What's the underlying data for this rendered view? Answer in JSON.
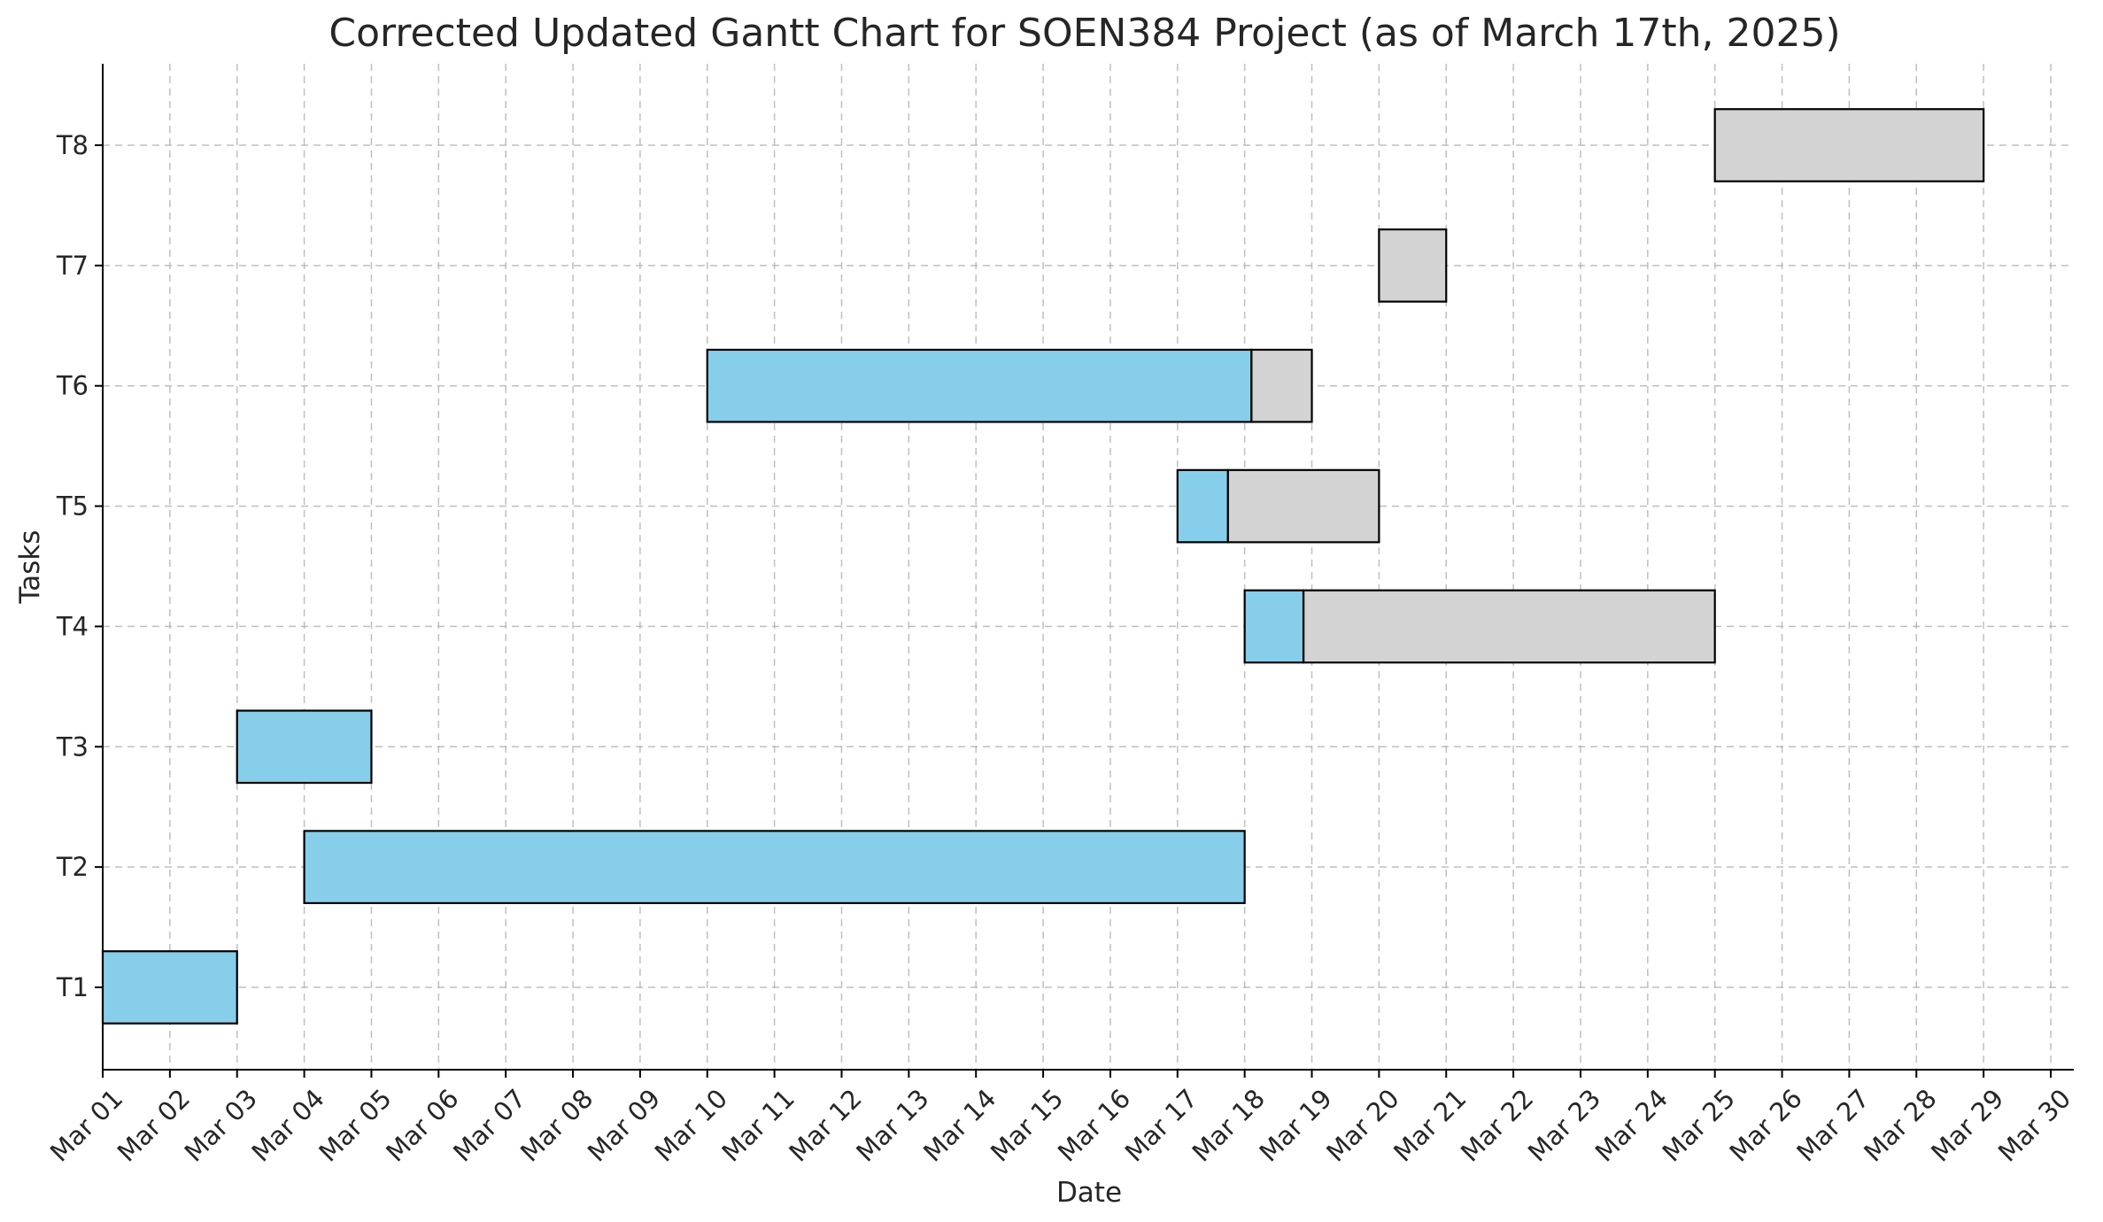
{
  "chart_data": {
    "type": "bar",
    "orientation": "horizontal",
    "subtype": "gantt",
    "title": "Corrected Updated Gantt Chart for SOEN384 Project (as of March 17th, 2025)",
    "xlabel": "Date",
    "ylabel": "Tasks",
    "x_ticks": [
      "Mar 01",
      "Mar 02",
      "Mar 03",
      "Mar 04",
      "Mar 05",
      "Mar 06",
      "Mar 07",
      "Mar 08",
      "Mar 09",
      "Mar 10",
      "Mar 11",
      "Mar 12",
      "Mar 13",
      "Mar 14",
      "Mar 15",
      "Mar 16",
      "Mar 17",
      "Mar 18",
      "Mar 19",
      "Mar 20",
      "Mar 21",
      "Mar 22",
      "Mar 23",
      "Mar 24",
      "Mar 25",
      "Mar 26",
      "Mar 27",
      "Mar 28",
      "Mar 29",
      "Mar 30"
    ],
    "xlim": [
      "2025-03-01",
      "2025-03-30"
    ],
    "categories": [
      "T1",
      "T2",
      "T3",
      "T4",
      "T5",
      "T6",
      "T7",
      "T8"
    ],
    "grid": true,
    "colors": {
      "completed": "#87ceeb",
      "remaining": "#d3d3d3",
      "edge": "#000000"
    },
    "tasks": [
      {
        "task": "T1",
        "start": "2025-03-01",
        "end": "2025-03-03",
        "progress": 1.0
      },
      {
        "task": "T2",
        "start": "2025-03-04",
        "end": "2025-03-18",
        "progress": 1.0
      },
      {
        "task": "T3",
        "start": "2025-03-03",
        "end": "2025-03-05",
        "progress": 1.0
      },
      {
        "task": "T4",
        "start": "2025-03-18",
        "end": "2025-03-25",
        "progress": 0.125
      },
      {
        "task": "T5",
        "start": "2025-03-17",
        "end": "2025-03-20",
        "progress": 0.25
      },
      {
        "task": "T6",
        "start": "2025-03-10",
        "end": "2025-03-19",
        "progress": 0.9
      },
      {
        "task": "T7",
        "start": "2025-03-20",
        "end": "2025-03-21",
        "progress": 0.0
      },
      {
        "task": "T8",
        "start": "2025-03-25",
        "end": "2025-03-29",
        "progress": 0.0
      }
    ]
  }
}
